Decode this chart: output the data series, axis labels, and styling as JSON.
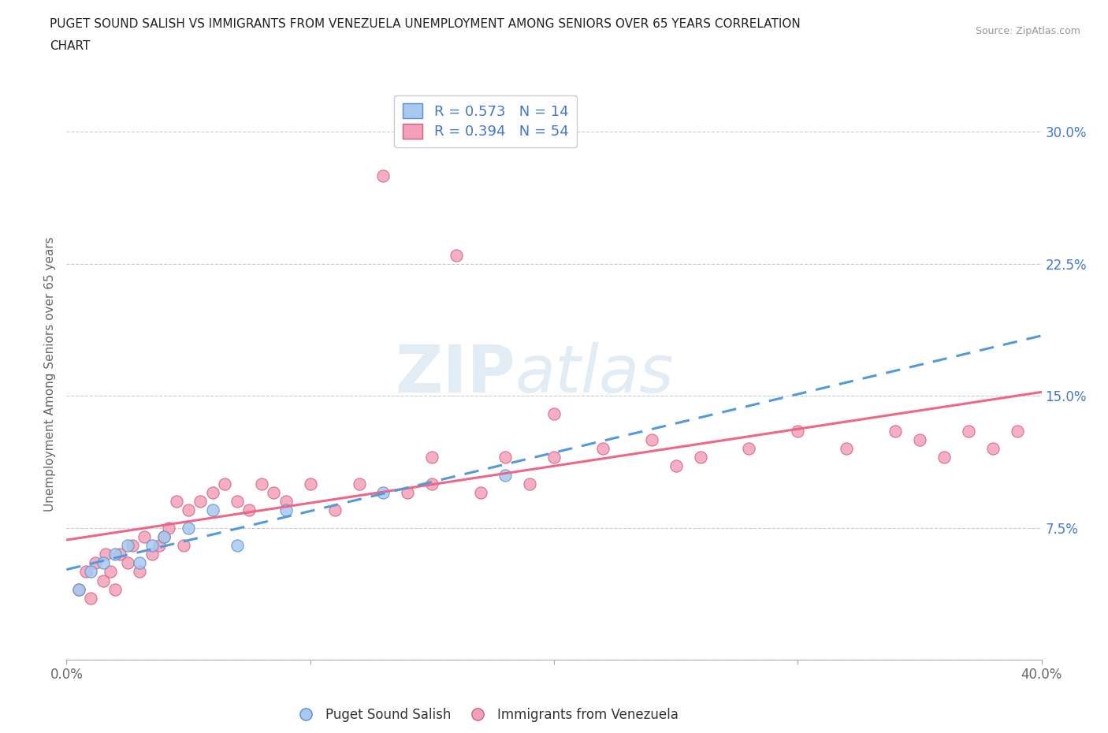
{
  "title_line1": "PUGET SOUND SALISH VS IMMIGRANTS FROM VENEZUELA UNEMPLOYMENT AMONG SENIORS OVER 65 YEARS CORRELATION",
  "title_line2": "CHART",
  "source": "Source: ZipAtlas.com",
  "ylabel": "Unemployment Among Seniors over 65 years",
  "xlim": [
    0.0,
    0.4
  ],
  "ylim": [
    0.0,
    0.325
  ],
  "xticks": [
    0.0,
    0.1,
    0.2,
    0.3,
    0.4
  ],
  "xtick_labels": [
    "0.0%",
    "",
    "",
    "",
    "40.0%"
  ],
  "yticks": [
    0.0,
    0.075,
    0.15,
    0.225,
    0.3
  ],
  "ytick_labels_right": [
    "",
    "7.5%",
    "15.0%",
    "22.5%",
    "30.0%"
  ],
  "salish_color": "#a8c8f0",
  "salish_edge": "#5590cc",
  "venezuela_color": "#f4a0b8",
  "venezuela_edge": "#d06080",
  "salish_line_color": "#5599dd",
  "venezuela_line_color": "#ee6688",
  "R_salish": 0.573,
  "N_salish": 14,
  "R_venezuela": 0.394,
  "N_venezuela": 54,
  "legend_label_salish": "Puget Sound Salish",
  "legend_label_venezuela": "Immigrants from Venezuela",
  "watermark_zip": "ZIP",
  "watermark_atlas": "atlas",
  "label_color": "#4477cc",
  "tick_color": "#666666",
  "grid_color": "#cccccc",
  "bg_color": "#ffffff",
  "salish_x": [
    0.005,
    0.01,
    0.015,
    0.02,
    0.025,
    0.03,
    0.035,
    0.04,
    0.05,
    0.06,
    0.07,
    0.09,
    0.13,
    0.18
  ],
  "salish_y": [
    0.04,
    0.05,
    0.055,
    0.06,
    0.065,
    0.055,
    0.065,
    0.07,
    0.075,
    0.085,
    0.065,
    0.085,
    0.095,
    0.105
  ],
  "venezuela_x": [
    0.005,
    0.008,
    0.01,
    0.012,
    0.015,
    0.016,
    0.018,
    0.02,
    0.022,
    0.025,
    0.027,
    0.03,
    0.032,
    0.035,
    0.038,
    0.04,
    0.042,
    0.045,
    0.048,
    0.05,
    0.055,
    0.06,
    0.065,
    0.07,
    0.075,
    0.08,
    0.085,
    0.09,
    0.1,
    0.11,
    0.12,
    0.13,
    0.14,
    0.15,
    0.16,
    0.17,
    0.18,
    0.19,
    0.2,
    0.22,
    0.24,
    0.26,
    0.28,
    0.3,
    0.32,
    0.34,
    0.35,
    0.36,
    0.37,
    0.38,
    0.39,
    0.15,
    0.2,
    0.25
  ],
  "venezuela_y": [
    0.04,
    0.05,
    0.035,
    0.055,
    0.045,
    0.06,
    0.05,
    0.04,
    0.06,
    0.055,
    0.065,
    0.05,
    0.07,
    0.06,
    0.065,
    0.07,
    0.075,
    0.09,
    0.065,
    0.085,
    0.09,
    0.095,
    0.1,
    0.09,
    0.085,
    0.1,
    0.095,
    0.09,
    0.1,
    0.085,
    0.1,
    0.275,
    0.095,
    0.115,
    0.23,
    0.095,
    0.115,
    0.1,
    0.115,
    0.12,
    0.125,
    0.115,
    0.12,
    0.13,
    0.12,
    0.13,
    0.125,
    0.115,
    0.13,
    0.12,
    0.13,
    0.1,
    0.14,
    0.11
  ]
}
